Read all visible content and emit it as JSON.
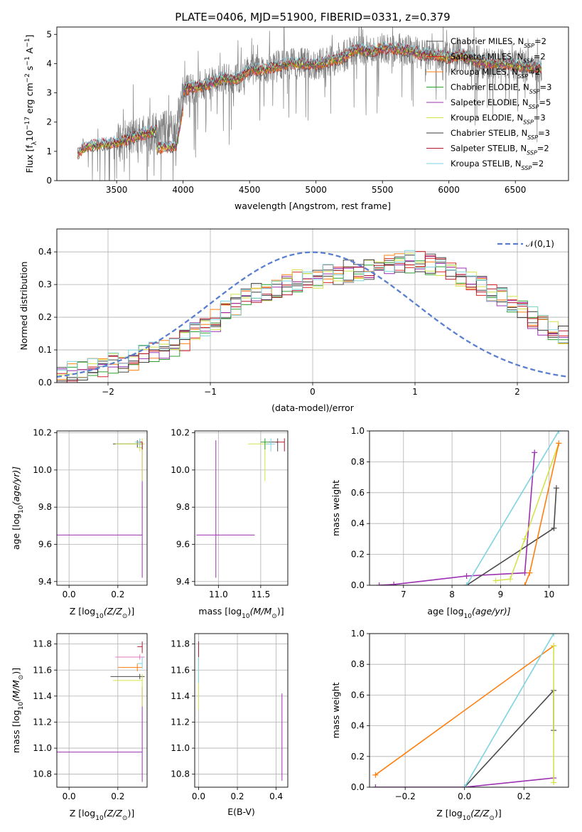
{
  "figure": {
    "title": "PLATE=0406, MJD=51900, FIBERID=0331, z=0.379"
  },
  "series_names": [
    "Chabrier MILES, N$_{SSP}$=2",
    "Salpeter MILES, N$_{SSP}$=2",
    "Kroupa MILES, N$_{SSP}$=2",
    "Chabrier ELODIE, N$_{SSP}$=3",
    "Salpeter ELODIE, N$_{SSP}$=5",
    "Kroupa ELODIE, N$_{SSP}$=3",
    "Chabrier STELIB, N$_{SSP}$=3",
    "Salpeter STELIB, N$_{SSP}$=2",
    "Kroupa STELIB, N$_{SSP}$=2"
  ],
  "legend_display": [
    {
      "base": "Chabrier MILES, N",
      "sub": "SSP",
      "tail": "=2",
      "color": "#4a4a4a"
    },
    {
      "base": "Salpeter MILES, N",
      "sub": "SSP",
      "tail": "=2",
      "color": "#d62728"
    },
    {
      "base": "Kroupa MILES, N",
      "sub": "SSP",
      "tail": "=2",
      "color": "#ff7f0e"
    },
    {
      "base": "Chabrier ELODIE, N",
      "sub": "SSP",
      "tail": "=3",
      "color": "#2ca02c"
    },
    {
      "base": "Salpeter ELODIE, N",
      "sub": "SSP",
      "tail": "=5",
      "color": "#9b30b0"
    },
    {
      "base": "Kroupa ELODIE, N",
      "sub": "SSP",
      "tail": "=3",
      "color": "#d4e34a"
    },
    {
      "base": "Chabrier STELIB, N",
      "sub": "SSP",
      "tail": "=3",
      "color": "#3a3a3a"
    },
    {
      "base": "Salpeter STELIB, N",
      "sub": "SSP",
      "tail": "=2",
      "color": "#b2182b"
    },
    {
      "base": "Kroupa STELIB, N",
      "sub": "SSP",
      "tail": "=2",
      "color": "#7fd3e0"
    }
  ],
  "chart_data": [
    {
      "id": "spectrum",
      "type": "line",
      "xlabel": "wavelength [Angstrom, rest frame]",
      "ylabel_parts": [
        "Flux [f",
        "λ",
        "10",
        "−17",
        " erg cm",
        "−2",
        " s",
        "−1",
        " A",
        "−1",
        "]"
      ],
      "xlim": [
        3050,
        6900
      ],
      "ylim": [
        0,
        5.25
      ],
      "xticks": [
        3500,
        4000,
        4500,
        5000,
        5500,
        6000,
        6500
      ],
      "yticks": [
        0,
        1,
        2,
        3,
        4,
        5
      ],
      "data_color": "#808080",
      "continuum": {
        "x": [
          3200,
          3250,
          3300,
          3400,
          3500,
          3600,
          3700,
          3800,
          3900,
          3950,
          4000,
          4100,
          4200,
          4300,
          4400,
          4500,
          4600,
          4700,
          4800,
          4900,
          5000,
          5100,
          5200,
          5300,
          5400,
          5500,
          5600,
          5700,
          5800,
          5900,
          6000,
          6100,
          6200,
          6300,
          6400,
          6500,
          6600,
          6700
        ],
        "y": [
          0.9,
          1.1,
          1.2,
          1.25,
          1.3,
          1.45,
          1.6,
          1.7,
          1.75,
          1.8,
          3.1,
          3.2,
          3.3,
          3.5,
          3.45,
          3.8,
          3.8,
          3.9,
          4.0,
          4.0,
          3.95,
          4.1,
          4.2,
          4.5,
          4.4,
          4.55,
          4.5,
          4.45,
          4.3,
          4.3,
          4.2,
          4.3,
          4.1,
          4.0,
          4.0,
          3.95,
          3.9,
          3.85
        ]
      },
      "legend_location": "upper right"
    },
    {
      "id": "residual-histogram",
      "type": "histogram",
      "xlabel": "(data-model)/error",
      "ylabel": "Normed distribution",
      "xlim": [
        -2.5,
        2.5
      ],
      "ylim": [
        0,
        0.47
      ],
      "xticks": [
        -2,
        -1,
        0,
        1,
        2
      ],
      "yticks": [
        0.0,
        0.1,
        0.2,
        0.3,
        0.4
      ],
      "reference_curve": {
        "label": "𝒩(0,1)",
        "mean": 0,
        "sigma": 1,
        "color": "#5b7fcf"
      },
      "bin_width": 0.1,
      "bin_start": -2.5,
      "example_heights": [
        0.02,
        0.03,
        0.04,
        0.04,
        0.05,
        0.06,
        0.06,
        0.07,
        0.08,
        0.09,
        0.1,
        0.11,
        0.13,
        0.15,
        0.17,
        0.19,
        0.22,
        0.24,
        0.26,
        0.27,
        0.28,
        0.29,
        0.3,
        0.31,
        0.31,
        0.32,
        0.33,
        0.33,
        0.34,
        0.34,
        0.35,
        0.35,
        0.36,
        0.36,
        0.37,
        0.37,
        0.36,
        0.35,
        0.34,
        0.33,
        0.31,
        0.3,
        0.28,
        0.26,
        0.24,
        0.22,
        0.2,
        0.18,
        0.16,
        0.14
      ]
    },
    {
      "id": "age-vs-metallicity",
      "type": "errorbar",
      "xlabel_parts": [
        "Z [log",
        "10",
        "(Z/Z",
        "⊙",
        ")]"
      ],
      "ylabel_parts": [
        "age  [log",
        "10",
        "(age/yr)]"
      ],
      "xlim": [
        -0.05,
        0.32
      ],
      "ylim": [
        9.38,
        10.21
      ],
      "xticks": [
        0.0,
        0.2
      ],
      "yticks": [
        9.4,
        9.6,
        9.8,
        10.0,
        10.2
      ],
      "points": [
        {
          "x": 0.3,
          "y": 9.65,
          "xerr": [
            0.35,
            0.0
          ],
          "yerr": [
            0.23,
            0.5
          ],
          "color": "#9b30b0"
        },
        {
          "x": 0.28,
          "y": 10.14,
          "xerr": [
            0.1,
            0.02
          ],
          "yerr": [
            0.02,
            0.02
          ],
          "color": "#4a4a4a"
        },
        {
          "x": 0.29,
          "y": 10.14,
          "xerr": [
            0.1,
            0.02
          ],
          "yerr": [
            0.04,
            0.02
          ],
          "color": "#d4e34a"
        },
        {
          "x": 0.3,
          "y": 10.12,
          "xerr": [
            0.02,
            0.0
          ],
          "yerr": [
            0.18,
            0.05
          ],
          "color": "#d4e34a"
        },
        {
          "x": 0.3,
          "y": 10.15,
          "xerr": [
            0.02,
            0.0
          ],
          "yerr": [
            0.04,
            0.0
          ],
          "color": "#b2182b"
        },
        {
          "x": 0.29,
          "y": 10.15,
          "xerr": [
            0.02,
            0.0
          ],
          "yerr": [
            0.03,
            0.02
          ],
          "color": "#7fd3e0"
        }
      ]
    },
    {
      "id": "age-vs-mass",
      "type": "errorbar",
      "xlabel_parts": [
        "mass [log",
        "10",
        "(M/M",
        "⊙",
        ")]"
      ],
      "xlim": [
        10.72,
        11.82
      ],
      "ylim": [
        9.38,
        10.21
      ],
      "xticks": [
        11.0,
        11.5
      ],
      "yticks": [
        9.4,
        9.6,
        9.8,
        10.0,
        10.2
      ],
      "points": [
        {
          "x": 10.97,
          "y": 9.65,
          "xerr": [
            0.23,
            0.46
          ],
          "yerr": [
            0.23,
            0.51
          ],
          "color": "#9b30b0"
        },
        {
          "x": 11.55,
          "y": 10.14,
          "xerr": [
            0.2,
            0.05
          ],
          "yerr": [
            0.2,
            0.02
          ],
          "color": "#d4e34a"
        },
        {
          "x": 11.55,
          "y": 10.15,
          "xerr": [
            0.05,
            0.05
          ],
          "yerr": [
            0.04,
            0.02
          ],
          "color": "#2ca02c"
        },
        {
          "x": 11.7,
          "y": 10.15,
          "xerr": [
            0.1,
            0.0
          ],
          "yerr": [
            0.05,
            0.02
          ],
          "color": "#4a4a4a"
        },
        {
          "x": 11.78,
          "y": 10.15,
          "xerr": [
            0.1,
            0.0
          ],
          "yerr": [
            0.05,
            0.02
          ],
          "color": "#b2182b"
        },
        {
          "x": 11.62,
          "y": 10.14,
          "xerr": [
            0.07,
            0.05
          ],
          "yerr": [
            0.04,
            0.03
          ],
          "color": "#7fd3e0"
        }
      ]
    },
    {
      "id": "cumulative-mass-weight-vs-age",
      "type": "line",
      "xlabel_parts": [
        "age  [log",
        "10",
        "(age/yr)]"
      ],
      "ylabel": "mass weight",
      "xlim": [
        6.3,
        10.4
      ],
      "ylim": [
        0,
        1.0
      ],
      "xticks": [
        7,
        8,
        9,
        10
      ],
      "yticks": [
        0.0,
        0.2,
        0.4,
        0.6,
        0.8,
        1.0
      ],
      "series": [
        {
          "color": "#9b30b0",
          "x": [
            6.5,
            6.8,
            8.3,
            9.5,
            9.7
          ],
          "y": [
            0.0,
            0.005,
            0.06,
            0.08,
            0.86
          ]
        },
        {
          "color": "#4a4a4a",
          "x": [
            8.3,
            10.1,
            10.15
          ],
          "y": [
            0.0,
            0.37,
            0.63
          ]
        },
        {
          "color": "#d4e34a",
          "x": [
            8.9,
            9.2,
            9.5,
            10.2
          ],
          "y": [
            0.03,
            0.04,
            0.3,
            0.92
          ]
        },
        {
          "color": "#ff7f0e",
          "x": [
            9.5,
            9.6,
            10.2
          ],
          "y": [
            0.0,
            0.08,
            0.92
          ]
        },
        {
          "color": "#7fd3e0",
          "x": [
            8.3,
            10.2
          ],
          "y": [
            0.0,
            1.0
          ]
        }
      ]
    },
    {
      "id": "mass-vs-metallicity",
      "type": "errorbar",
      "xlabel_parts": [
        "Z [log",
        "10",
        "(Z/Z",
        "⊙",
        ")]"
      ],
      "ylabel_parts": [
        "mass [log",
        "10",
        "(M/M",
        "⊙",
        ")]"
      ],
      "xlim": [
        -0.05,
        0.32
      ],
      "ylim": [
        10.7,
        11.88
      ],
      "xticks": [
        0.0,
        0.2
      ],
      "yticks": [
        10.8,
        11.0,
        11.2,
        11.4,
        11.6,
        11.8
      ],
      "points": [
        {
          "x": 0.3,
          "y": 10.97,
          "xerr": [
            0.35,
            0.0
          ],
          "yerr": [
            0.23,
            0.5
          ],
          "color": "#9b30b0"
        },
        {
          "x": 0.29,
          "y": 11.7,
          "xerr": [
            0.1,
            0.02
          ],
          "yerr": [
            0.02,
            0.02
          ],
          "color": "#e377c2"
        },
        {
          "x": 0.28,
          "y": 11.62,
          "xerr": [
            0.08,
            0.02
          ],
          "yerr": [
            0.03,
            0.03
          ],
          "color": "#ff7f0e"
        },
        {
          "x": 0.29,
          "y": 11.55,
          "xerr": [
            0.12,
            0.02
          ],
          "yerr": [
            0.02,
            0.02
          ],
          "color": "#4a4a4a"
        },
        {
          "x": 0.3,
          "y": 11.52,
          "xerr": [
            0.12,
            0.0
          ],
          "yerr": [
            0.2,
            0.05
          ],
          "color": "#d4e34a"
        },
        {
          "x": 0.3,
          "y": 11.78,
          "xerr": [
            0.02,
            0.0
          ],
          "yerr": [
            0.05,
            0.04
          ],
          "color": "#b2182b"
        },
        {
          "x": 0.3,
          "y": 11.65,
          "xerr": [
            0.02,
            0.0
          ],
          "yerr": [
            0.04,
            0.05
          ],
          "color": "#7fd3e0"
        }
      ]
    },
    {
      "id": "mass-vs-ebv",
      "type": "errorbar",
      "xlabel": "E(B-V)",
      "xlim": [
        -0.02,
        0.46
      ],
      "ylim": [
        10.7,
        11.88
      ],
      "xticks": [
        0.0,
        0.2,
        0.4
      ],
      "yticks": [
        10.8,
        11.0,
        11.2,
        11.4,
        11.6,
        11.8
      ],
      "points": [
        {
          "x": 0.43,
          "y": 11.0,
          "xerr": [
            0,
            0
          ],
          "yerr": [
            0.25,
            0.42
          ],
          "color": "#9b30b0"
        },
        {
          "x": 0.0,
          "y": 11.65,
          "xerr": [
            0,
            0
          ],
          "yerr": [
            0.05,
            0.17
          ],
          "color": "#b2182b"
        },
        {
          "x": 0.0,
          "y": 11.55,
          "xerr": [
            0,
            0
          ],
          "yerr": [
            0.25,
            0.1
          ],
          "color": "#d4e34a"
        },
        {
          "x": 0.0,
          "y": 11.6,
          "xerr": [
            0,
            0
          ],
          "yerr": [
            0.1,
            0.1
          ],
          "color": "#7fd3e0"
        }
      ]
    },
    {
      "id": "cumulative-mass-weight-vs-metallicity",
      "type": "line",
      "xlabel_parts": [
        "Z [log",
        "10",
        "(Z/Z",
        "⊙",
        ")]"
      ],
      "ylabel": "mass weight",
      "xlim": [
        -0.32,
        0.35
      ],
      "ylim": [
        0,
        1.0
      ],
      "xticks": [
        -0.2,
        0.0,
        0.2
      ],
      "yticks": [
        0.0,
        0.2,
        0.4,
        0.6,
        0.8,
        1.0
      ],
      "series": [
        {
          "color": "#ff7f0e",
          "x": [
            -0.3,
            0.3
          ],
          "y": [
            0.08,
            0.92
          ]
        },
        {
          "color": "#9b30b0",
          "x": [
            -0.3,
            0.0,
            0.3
          ],
          "y": [
            0.0,
            0.0,
            0.06
          ]
        },
        {
          "color": "#4a4a4a",
          "x": [
            0.0,
            0.3,
            0.3
          ],
          "y": [
            0.0,
            0.63,
            0.37
          ]
        },
        {
          "color": "#7fd3e0",
          "x": [
            0.0,
            0.3
          ],
          "y": [
            0.0,
            1.0
          ]
        },
        {
          "color": "#d4e34a",
          "x": [
            0.3,
            0.3
          ],
          "y": [
            0.03,
            0.92
          ]
        }
      ]
    }
  ]
}
